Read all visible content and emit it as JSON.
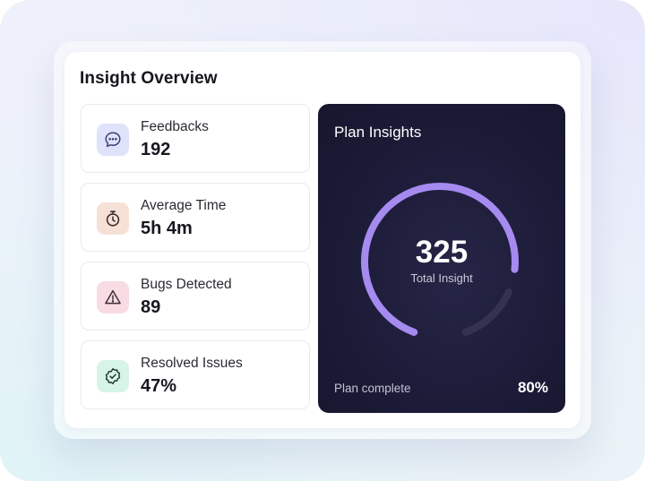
{
  "overview": {
    "title": "Insight Overview",
    "stats": [
      {
        "label": "Feedbacks",
        "value": "192",
        "icon": "chat-bubble-icon",
        "icon_bg": "#dfe2fb",
        "icon_color": "#3a3f6e"
      },
      {
        "label": "Average Time",
        "value": "5h 4m",
        "icon": "stopwatch-icon",
        "icon_bg": "#f7e1d7",
        "icon_color": "#3a2f2f"
      },
      {
        "label": "Bugs Detected",
        "value": "89",
        "icon": "warning-icon",
        "icon_bg": "#f8dbe3",
        "icon_color": "#3a2f33"
      },
      {
        "label": "Resolved Issues",
        "value": "47%",
        "icon": "verified-badge-icon",
        "icon_bg": "#d6f4e7",
        "icon_color": "#23372f"
      }
    ]
  },
  "plan_insights": {
    "title": "Plan Insights",
    "gauge_value": "325",
    "gauge_caption": "Total Insight",
    "progress_fraction": 0.8,
    "progress_label": "Plan complete",
    "progress_percent": "80%",
    "accent_color": "#a58af0",
    "track_color": "#34334f",
    "panel_color": "#1c1b38"
  }
}
